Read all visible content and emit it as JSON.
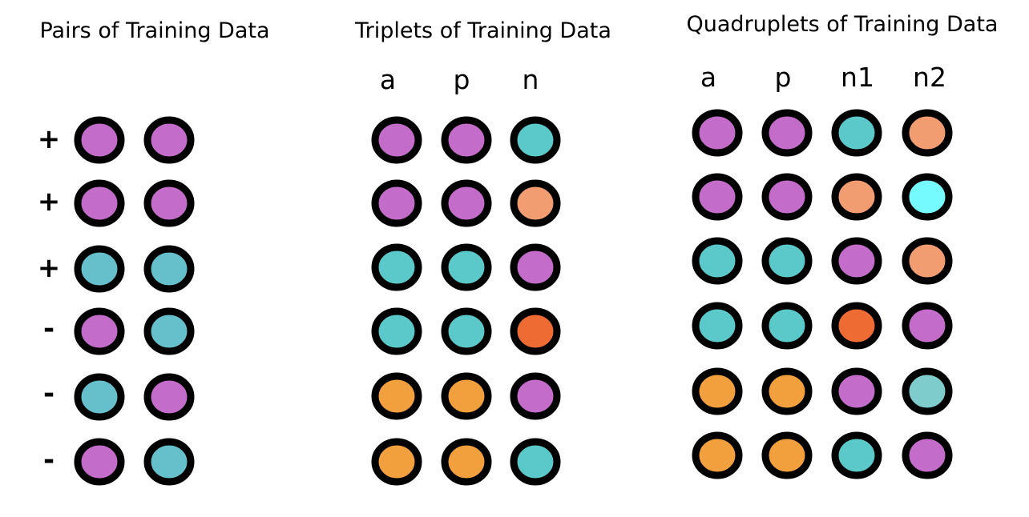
{
  "colors": {
    "purple": "#C46CC9",
    "teal": "#5BC8CA",
    "teal_muted": "#65C0CC",
    "teal_light": "#7ECDCC",
    "salmon": "#F29C72",
    "orange_red": "#EE6C33",
    "orange": "#F29F3D",
    "cyan_bright": "#75FBFD"
  },
  "pairs": {
    "title": "Pairs of Training Data",
    "rows": [
      {
        "sign": "+",
        "dots": [
          "purple",
          "purple"
        ]
      },
      {
        "sign": "+",
        "dots": [
          "purple",
          "purple"
        ]
      },
      {
        "sign": "+",
        "dots": [
          "teal_muted",
          "teal_muted"
        ]
      },
      {
        "sign": "-",
        "dots": [
          "purple",
          "teal_muted"
        ]
      },
      {
        "sign": "-",
        "dots": [
          "teal_muted",
          "purple"
        ]
      },
      {
        "sign": "-",
        "dots": [
          "purple",
          "teal_muted"
        ]
      }
    ]
  },
  "triplets": {
    "title": "Triplets of Training Data",
    "columns": [
      "a",
      "p",
      "n"
    ],
    "rows": [
      [
        "purple",
        "purple",
        "teal"
      ],
      [
        "purple",
        "purple",
        "salmon"
      ],
      [
        "teal",
        "teal",
        "purple"
      ],
      [
        "teal",
        "teal",
        "orange_red"
      ],
      [
        "orange",
        "orange",
        "purple"
      ],
      [
        "orange",
        "orange",
        "teal"
      ]
    ]
  },
  "quadruplets": {
    "title": "Quadruplets of Training Data",
    "columns": [
      "a",
      "p",
      "n1",
      "n2"
    ],
    "rows": [
      [
        "purple",
        "purple",
        "teal",
        "salmon"
      ],
      [
        "purple",
        "purple",
        "salmon",
        "cyan_bright"
      ],
      [
        "teal",
        "teal",
        "purple",
        "salmon"
      ],
      [
        "teal",
        "teal",
        "orange_red",
        "purple"
      ],
      [
        "orange",
        "orange",
        "purple",
        "teal_light"
      ],
      [
        "orange",
        "orange",
        "teal",
        "purple"
      ]
    ]
  }
}
